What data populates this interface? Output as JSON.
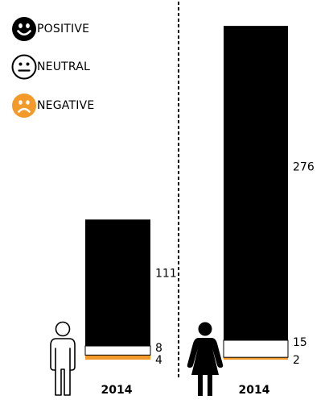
{
  "legend": [
    {
      "label": "POSITIVE",
      "icon": "smiley-positive-icon",
      "color": "#000000"
    },
    {
      "label": "NEUTRAL",
      "icon": "smiley-neutral-icon",
      "color": "#ffffff"
    },
    {
      "label": "NEGATIVE",
      "icon": "smiley-negative-icon",
      "color": "#f39a2b"
    }
  ],
  "chart_data": {
    "type": "bar",
    "stacked": true,
    "categories": [
      "men",
      "women"
    ],
    "category_icons": [
      "man-icon",
      "woman-icon"
    ],
    "year_labels": [
      "2014",
      "2014"
    ],
    "series": [
      {
        "name": "NEGATIVE",
        "values": [
          4,
          2
        ],
        "color": "#f39a2b"
      },
      {
        "name": "NEUTRAL",
        "values": [
          8,
          15
        ],
        "color": "#ffffff"
      },
      {
        "name": "POSITIVE",
        "values": [
          111,
          276
        ],
        "color": "#000000"
      }
    ],
    "ylim": [
      0,
      303
    ],
    "grid": false,
    "legend_position": "top-left"
  }
}
